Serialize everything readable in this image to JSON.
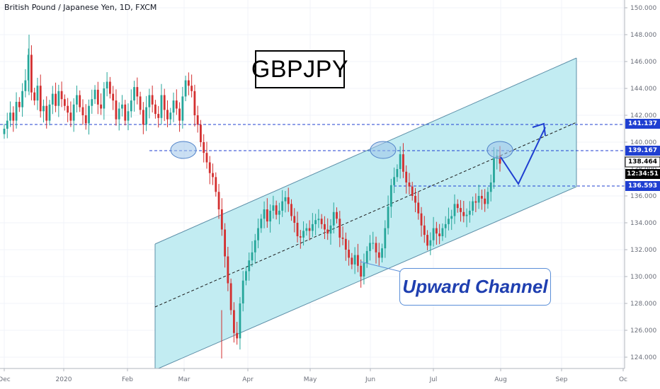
{
  "header": {
    "symbol_text": "British Pound / Japanese Yen, 1D, FXCM"
  },
  "annotations": {
    "title": "GBPJPY",
    "callout": "Upward Channel"
  },
  "colors": {
    "up": "#26a69a",
    "down": "#d32f2f",
    "channel_fill": "#c2ecf2",
    "channel_line": "#5d8fa8",
    "level_line": "#1f3fd1",
    "ellipse": "#9fc5ea",
    "label_blue": "#1f3fd1",
    "label_dark": "#000000"
  },
  "chart_data": {
    "type": "candlestick",
    "x_tick_labels": [
      "Dec",
      "2020",
      "Feb",
      "Mar",
      "Apr",
      "May",
      "Jun",
      "Jul",
      "Aug",
      "Sep",
      "Oc"
    ],
    "y_tick_labels": [
      "124.000",
      "126.000",
      "128.000",
      "130.000",
      "132.000",
      "134.000",
      "136.000",
      "138.000",
      "140.000",
      "142.000",
      "144.000",
      "146.000",
      "148.000",
      "150.000"
    ],
    "ylim": [
      123.0,
      150.5
    ],
    "price_levels": [
      {
        "label": "141.137",
        "value": 141.137,
        "style": "dashed",
        "color": "blue"
      },
      {
        "label": "139.167",
        "value": 139.167,
        "style": "dashed",
        "color": "blue"
      },
      {
        "label": "136.593",
        "value": 136.593,
        "style": "dashed",
        "color": "blue"
      }
    ],
    "last_price": {
      "label": "138.464",
      "value": 138.464
    },
    "countdown": "12:34:51",
    "path_points": [
      141.0,
      141.6,
      142.2,
      141.6,
      143.0,
      142.6,
      143.8,
      144.6,
      146.5,
      143.7,
      143.1,
      144.2,
      142.3,
      142.7,
      141.6,
      142.8,
      143.6,
      142.7,
      143.8,
      143.2,
      142.7,
      142.2,
      141.6,
      142.8,
      143.5,
      142.6,
      142.0,
      141.4,
      142.7,
      143.2,
      143.9,
      142.8,
      142.5,
      144.0,
      144.5,
      143.6,
      143.1,
      141.7,
      142.5,
      142.8,
      141.6,
      142.3,
      143.1,
      144.1,
      143.4,
      142.4,
      141.3,
      142.6,
      143.5,
      142.8,
      142.1,
      141.8,
      143.5,
      142.4,
      141.7,
      142.2,
      143.1,
      142.5,
      141.6,
      143.4,
      144.6,
      144.2,
      143.8,
      142.0,
      141.3,
      140.0,
      139.2,
      138.5,
      137.7,
      137.4,
      136.3,
      135.0,
      133.5,
      131.5,
      129.5,
      127.5,
      125.8,
      125.4,
      128.0,
      129.7,
      130.4,
      131.2,
      131.8,
      132.7,
      133.6,
      134.3,
      135.0,
      134.1,
      134.9,
      135.3,
      134.6,
      134.9,
      135.6,
      135.9,
      135.4,
      134.5,
      134.0,
      133.0,
      132.9,
      133.4,
      133.6,
      133.4,
      133.9,
      134.2,
      134.3,
      133.9,
      133.5,
      133.2,
      133.8,
      134.8,
      134.3,
      132.9,
      132.8,
      132.0,
      131.4,
      130.9,
      131.6,
      130.8,
      130.0,
      131.0,
      131.9,
      132.5,
      132.5,
      131.8,
      131.4,
      132.1,
      133.6,
      135.2,
      136.8,
      137.4,
      138.0,
      139.1,
      137.8,
      137.0,
      136.7,
      136.0,
      135.5,
      134.7,
      133.8,
      133.1,
      132.3,
      132.7,
      133.6,
      133.2,
      133.0,
      133.6,
      133.9,
      134.3,
      134.5,
      135.4,
      135.1,
      134.8,
      134.5,
      134.6,
      134.9,
      135.6,
      135.5,
      136.0,
      135.8,
      135.4,
      136.3,
      137.0,
      138.8,
      139.0,
      138.4
    ]
  }
}
